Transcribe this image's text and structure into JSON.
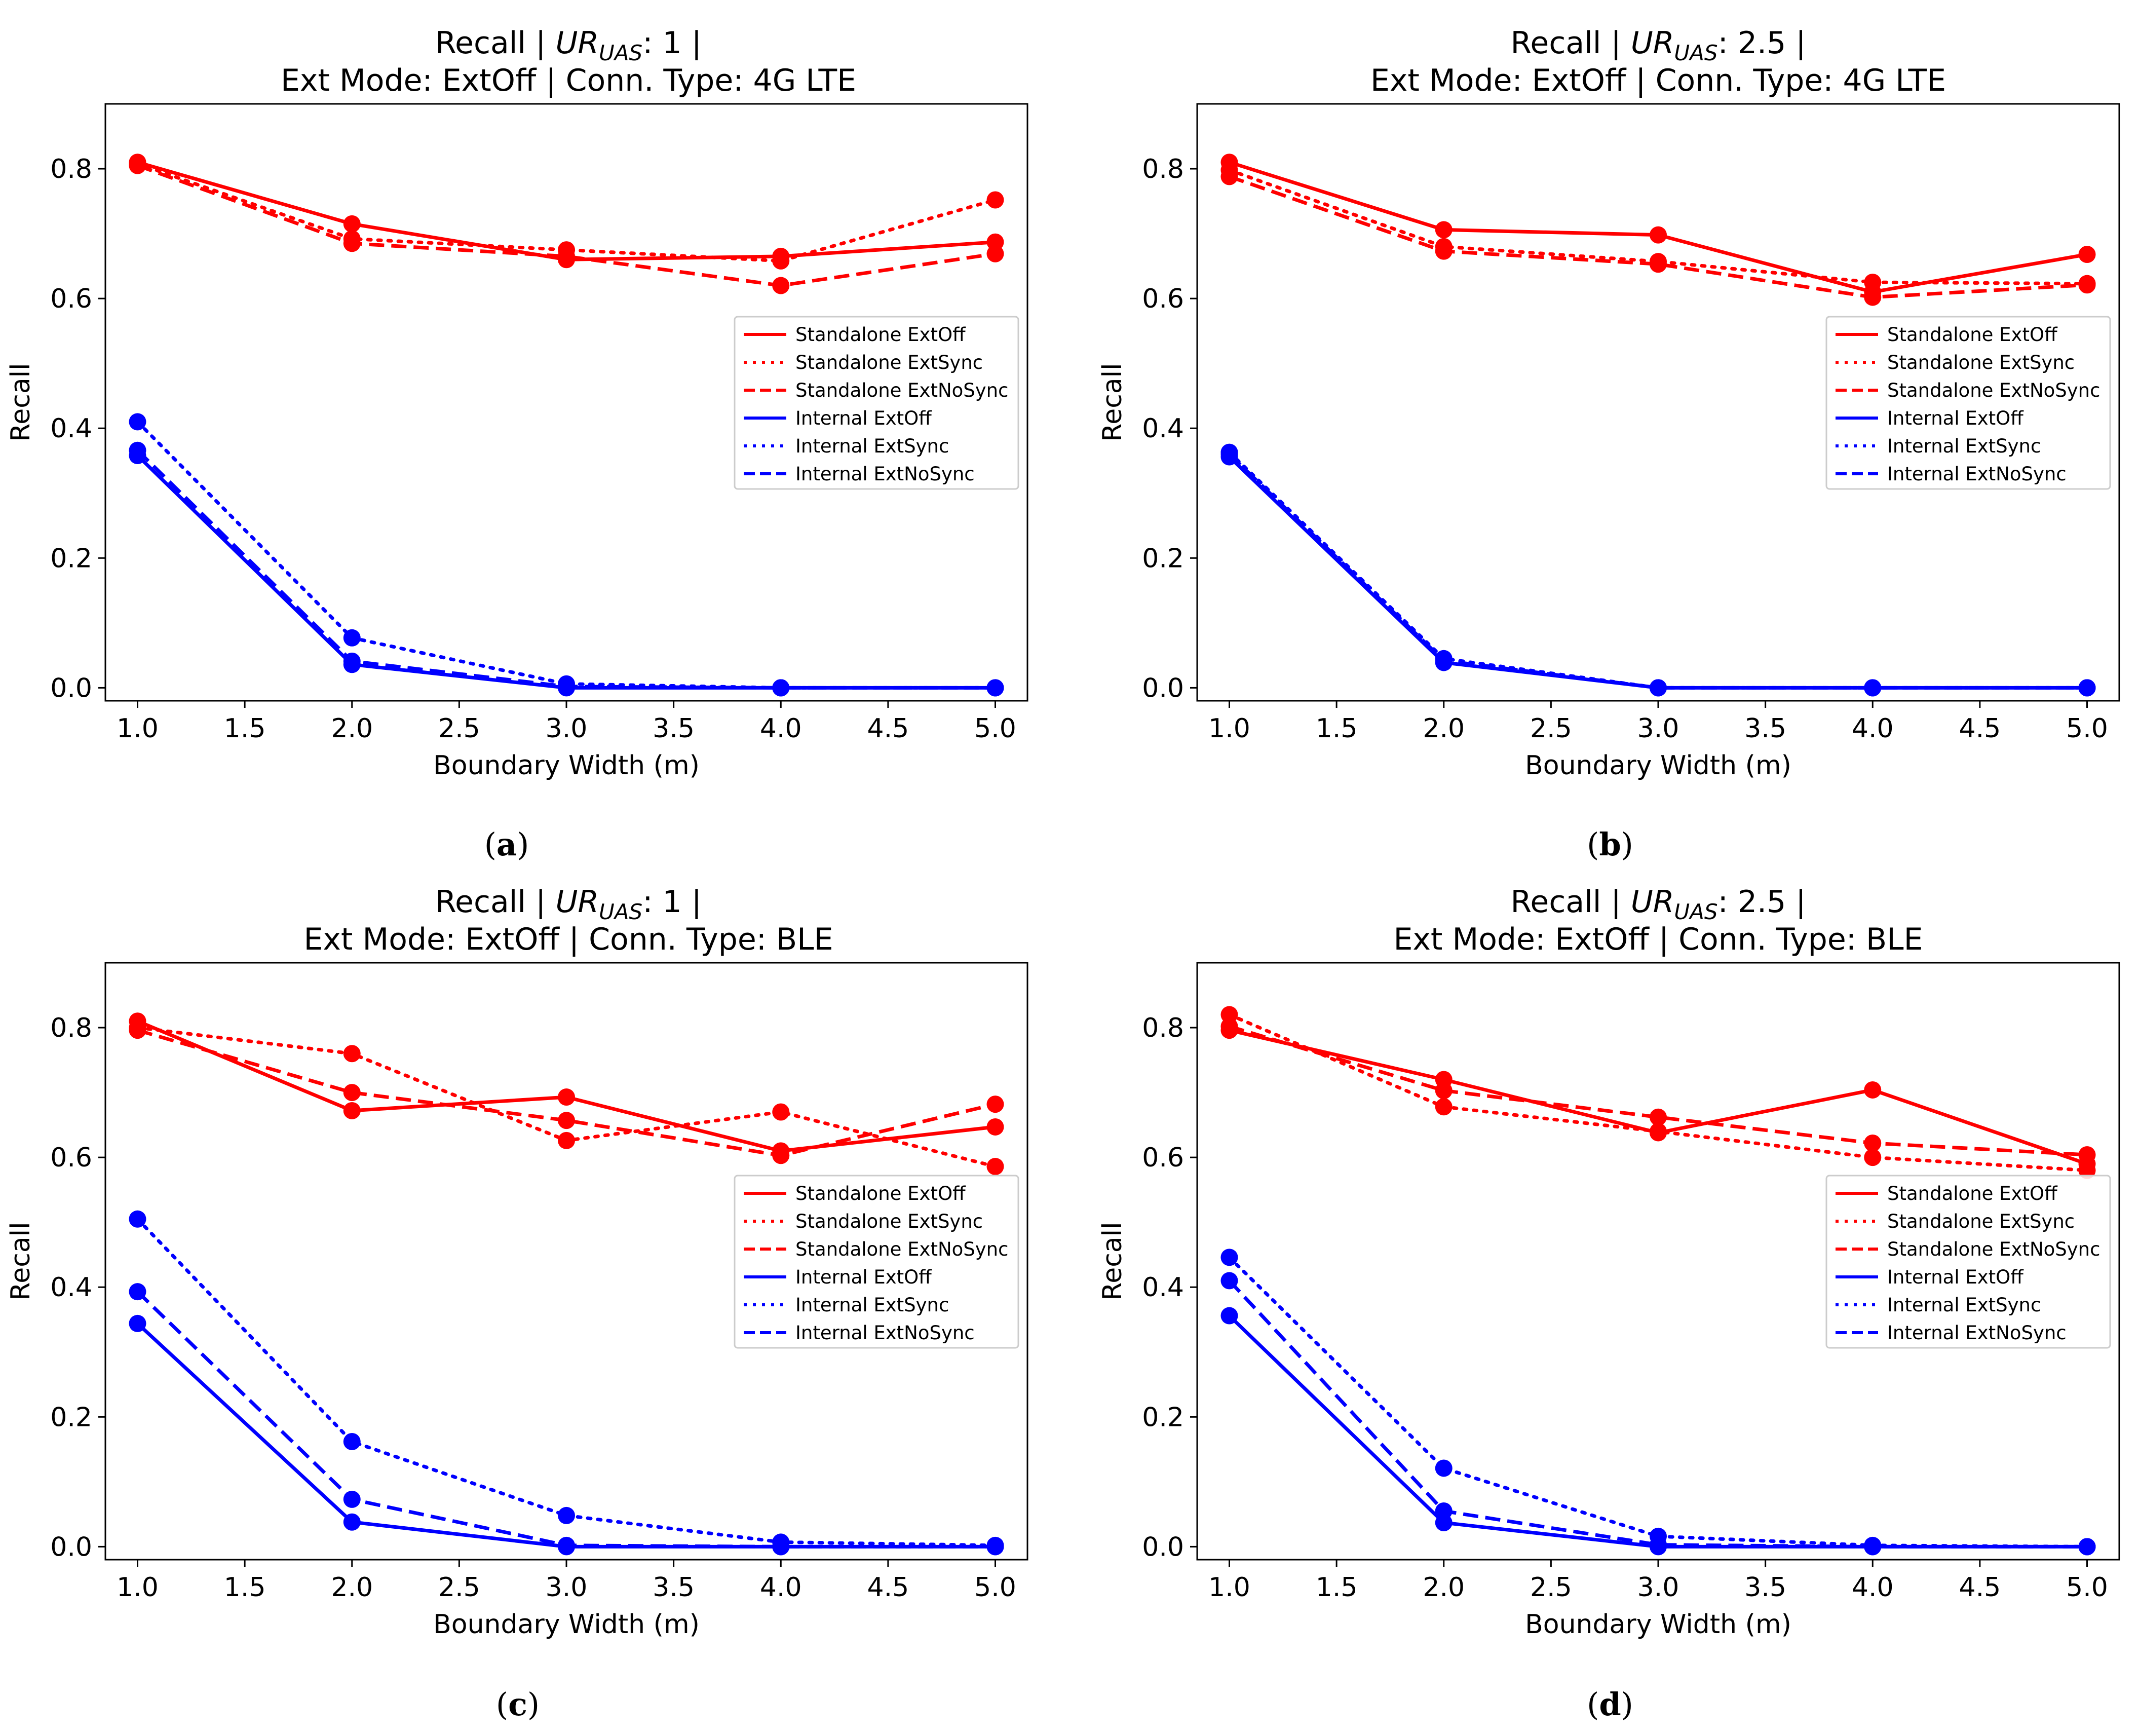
{
  "figure": {
    "panels": [
      {
        "caption": "(a)",
        "title_line1_prefix": "Recall | ",
        "title_ur": "UR",
        "title_uas": "UAS",
        "title_line1_suffix": ": 1 |",
        "title_line2": "Ext Mode: ExtOff | Conn. Type: 4G LTE"
      },
      {
        "caption": "(b)",
        "title_line1_prefix": "Recall | ",
        "title_ur": "UR",
        "title_uas": "UAS",
        "title_line1_suffix": ": 2.5 |",
        "title_line2": "Ext Mode: ExtOff | Conn. Type: 4G LTE"
      },
      {
        "caption": "(c)",
        "title_line1_prefix": "Recall | ",
        "title_ur": "UR",
        "title_uas": "UAS",
        "title_line1_suffix": ": 1 |",
        "title_line2": "Ext Mode: ExtOff | Conn. Type: BLE"
      },
      {
        "caption": "(d)",
        "title_line1_prefix": "Recall | ",
        "title_ur": "UR",
        "title_uas": "UAS",
        "title_line1_suffix": ": 2.5 |",
        "title_line2": "Ext Mode: ExtOff | Conn. Type: BLE"
      }
    ]
  },
  "chart_data": [
    {
      "type": "line",
      "title": "Recall | UR_UAS: 1 | Ext Mode: ExtOff | Conn. Type: 4G LTE",
      "xlabel": "Boundary  Width (m)",
      "ylabel": "Recall",
      "xlim": [
        0.85,
        5.15
      ],
      "ylim": [
        -0.02,
        0.9
      ],
      "xticks": [
        1.0,
        1.5,
        2.0,
        2.5,
        3.0,
        3.5,
        4.0,
        4.5,
        5.0
      ],
      "xtick_labels": [
        "1.0",
        "1.5",
        "2.0",
        "2.5",
        "3.0",
        "3.5",
        "4.0",
        "4.5",
        "5.0"
      ],
      "yticks": [
        0.0,
        0.2,
        0.4,
        0.6,
        0.8
      ],
      "ytick_labels": [
        "0.0",
        "0.2",
        "0.4",
        "0.6",
        "0.8"
      ],
      "legend_position": "right",
      "x": [
        1.0,
        2.0,
        3.0,
        4.0,
        5.0
      ],
      "series": [
        {
          "name": "Standalone ExtOff",
          "color": "#ff0000",
          "dash": "solid",
          "values": [
            0.81,
            0.715,
            0.66,
            0.665,
            0.687
          ]
        },
        {
          "name": "Standalone ExtSync",
          "color": "#ff0000",
          "dash": "dotted",
          "values": [
            0.808,
            0.692,
            0.675,
            0.658,
            0.752
          ]
        },
        {
          "name": "Standalone ExtNoSync",
          "color": "#ff0000",
          "dash": "dashed",
          "values": [
            0.805,
            0.685,
            0.665,
            0.62,
            0.669
          ]
        },
        {
          "name": "Internal ExtOff",
          "color": "#0000ff",
          "dash": "solid",
          "values": [
            0.358,
            0.036,
            0.0,
            0.0,
            0.0
          ]
        },
        {
          "name": "Internal ExtSync",
          "color": "#0000ff",
          "dash": "dotted",
          "values": [
            0.41,
            0.077,
            0.006,
            0.0,
            0.0
          ]
        },
        {
          "name": "Internal ExtNoSync",
          "color": "#0000ff",
          "dash": "dashed",
          "values": [
            0.366,
            0.041,
            0.002,
            0.0,
            0.0
          ]
        }
      ]
    },
    {
      "type": "line",
      "title": "Recall | UR_UAS: 2.5 | Ext Mode: ExtOff | Conn. Type: 4G LTE",
      "xlabel": "Boundary  Width (m)",
      "ylabel": "Recall",
      "xlim": [
        0.85,
        5.15
      ],
      "ylim": [
        -0.02,
        0.9
      ],
      "xticks": [
        1.0,
        1.5,
        2.0,
        2.5,
        3.0,
        3.5,
        4.0,
        4.5,
        5.0
      ],
      "xtick_labels": [
        "1.0",
        "1.5",
        "2.0",
        "2.5",
        "3.0",
        "3.5",
        "4.0",
        "4.5",
        "5.0"
      ],
      "yticks": [
        0.0,
        0.2,
        0.4,
        0.6,
        0.8
      ],
      "ytick_labels": [
        "0.0",
        "0.2",
        "0.4",
        "0.6",
        "0.8"
      ],
      "legend_position": "right",
      "x": [
        1.0,
        2.0,
        3.0,
        4.0,
        5.0
      ],
      "series": [
        {
          "name": "Standalone ExtOff",
          "color": "#ff0000",
          "dash": "solid",
          "values": [
            0.81,
            0.706,
            0.698,
            0.61,
            0.668
          ]
        },
        {
          "name": "Standalone ExtSync",
          "color": "#ff0000",
          "dash": "dotted",
          "values": [
            0.798,
            0.68,
            0.657,
            0.625,
            0.623
          ]
        },
        {
          "name": "Standalone ExtNoSync",
          "color": "#ff0000",
          "dash": "dashed",
          "values": [
            0.788,
            0.673,
            0.653,
            0.602,
            0.621
          ]
        },
        {
          "name": "Internal ExtOff",
          "color": "#0000ff",
          "dash": "solid",
          "values": [
            0.356,
            0.039,
            0.0,
            0.0,
            0.0
          ]
        },
        {
          "name": "Internal ExtSync",
          "color": "#0000ff",
          "dash": "dotted",
          "values": [
            0.363,
            0.045,
            0.0,
            0.0,
            0.0
          ]
        },
        {
          "name": "Internal ExtNoSync",
          "color": "#0000ff",
          "dash": "dashed",
          "values": [
            0.36,
            0.042,
            0.0,
            0.0,
            0.0
          ]
        }
      ]
    },
    {
      "type": "line",
      "title": "Recall | UR_UAS: 1 | Ext Mode: ExtOff | Conn. Type: BLE",
      "xlabel": "Boundary  Width (m)",
      "ylabel": "Recall",
      "xlim": [
        0.85,
        5.15
      ],
      "ylim": [
        -0.02,
        0.9
      ],
      "xticks": [
        1.0,
        1.5,
        2.0,
        2.5,
        3.0,
        3.5,
        4.0,
        4.5,
        5.0
      ],
      "xtick_labels": [
        "1.0",
        "1.5",
        "2.0",
        "2.5",
        "3.0",
        "3.5",
        "4.0",
        "4.5",
        "5.0"
      ],
      "yticks": [
        0.0,
        0.2,
        0.4,
        0.6,
        0.8
      ],
      "ytick_labels": [
        "0.0",
        "0.2",
        "0.4",
        "0.6",
        "0.8"
      ],
      "legend_position": "right",
      "x": [
        1.0,
        2.0,
        3.0,
        4.0,
        5.0
      ],
      "series": [
        {
          "name": "Standalone ExtOff",
          "color": "#ff0000",
          "dash": "solid",
          "values": [
            0.81,
            0.672,
            0.693,
            0.61,
            0.647
          ]
        },
        {
          "name": "Standalone ExtSync",
          "color": "#ff0000",
          "dash": "dotted",
          "values": [
            0.8,
            0.76,
            0.626,
            0.67,
            0.586
          ]
        },
        {
          "name": "Standalone ExtNoSync",
          "color": "#ff0000",
          "dash": "dashed",
          "values": [
            0.796,
            0.7,
            0.657,
            0.603,
            0.682
          ]
        },
        {
          "name": "Internal ExtOff",
          "color": "#0000ff",
          "dash": "solid",
          "values": [
            0.344,
            0.038,
            0.0,
            0.0,
            0.0
          ]
        },
        {
          "name": "Internal ExtSync",
          "color": "#0000ff",
          "dash": "dotted",
          "values": [
            0.505,
            0.162,
            0.048,
            0.007,
            0.002
          ]
        },
        {
          "name": "Internal ExtNoSync",
          "color": "#0000ff",
          "dash": "dashed",
          "values": [
            0.393,
            0.073,
            0.002,
            0.0,
            0.0
          ]
        }
      ]
    },
    {
      "type": "line",
      "title": "Recall | UR_UAS: 2.5 | Ext Mode: ExtOff | Conn. Type: BLE",
      "xlabel": "Boundary  Width (m)",
      "ylabel": "Recall",
      "xlim": [
        0.85,
        5.15
      ],
      "ylim": [
        -0.02,
        0.9
      ],
      "xticks": [
        1.0,
        1.5,
        2.0,
        2.5,
        3.0,
        3.5,
        4.0,
        4.5,
        5.0
      ],
      "xtick_labels": [
        "1.0",
        "1.5",
        "2.0",
        "2.5",
        "3.0",
        "3.5",
        "4.0",
        "4.5",
        "5.0"
      ],
      "yticks": [
        0.0,
        0.2,
        0.4,
        0.6,
        0.8
      ],
      "ytick_labels": [
        "0.0",
        "0.2",
        "0.4",
        "0.6",
        "0.8"
      ],
      "legend_position": "right",
      "x": [
        1.0,
        2.0,
        3.0,
        4.0,
        5.0
      ],
      "series": [
        {
          "name": "Standalone ExtOff",
          "color": "#ff0000",
          "dash": "solid",
          "values": [
            0.796,
            0.72,
            0.638,
            0.704,
            0.59
          ]
        },
        {
          "name": "Standalone ExtSync",
          "color": "#ff0000",
          "dash": "dotted",
          "values": [
            0.82,
            0.678,
            0.64,
            0.6,
            0.58
          ]
        },
        {
          "name": "Standalone ExtNoSync",
          "color": "#ff0000",
          "dash": "dashed",
          "values": [
            0.802,
            0.703,
            0.662,
            0.622,
            0.604
          ]
        },
        {
          "name": "Internal ExtOff",
          "color": "#0000ff",
          "dash": "solid",
          "values": [
            0.356,
            0.037,
            0.0,
            0.0,
            0.0
          ]
        },
        {
          "name": "Internal ExtSync",
          "color": "#0000ff",
          "dash": "dotted",
          "values": [
            0.446,
            0.121,
            0.016,
            0.002,
            0.0
          ]
        },
        {
          "name": "Internal ExtNoSync",
          "color": "#0000ff",
          "dash": "dashed",
          "values": [
            0.41,
            0.055,
            0.003,
            0.0,
            0.0
          ]
        }
      ]
    }
  ]
}
